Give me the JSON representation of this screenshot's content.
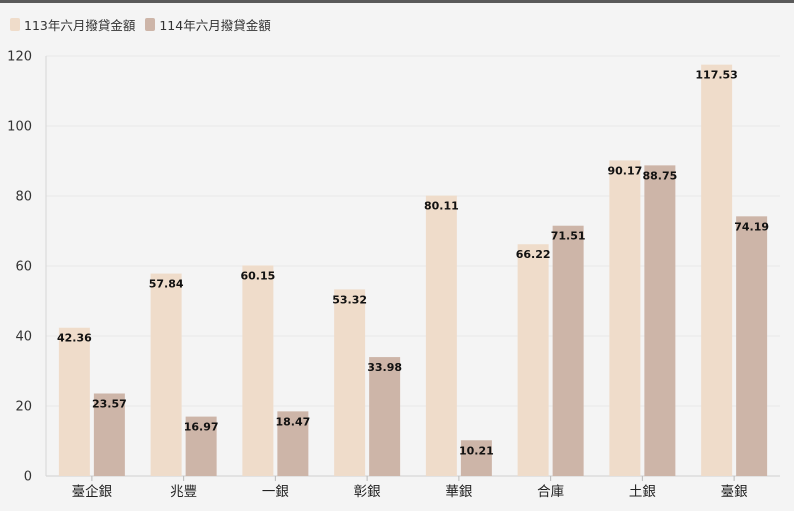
{
  "chart_data": {
    "type": "bar",
    "categories": [
      "臺企銀",
      "兆豐",
      "一銀",
      "彰銀",
      "華銀",
      "合庫",
      "土銀",
      "臺銀"
    ],
    "series": [
      {
        "name": "113年六月撥貸金額",
        "color": "#efdcca",
        "values": [
          42.36,
          57.84,
          60.15,
          53.32,
          80.11,
          66.22,
          90.17,
          117.53
        ]
      },
      {
        "name": "114年六月撥貸金額",
        "color": "#cdb5a8",
        "values": [
          23.57,
          16.97,
          18.47,
          33.98,
          10.21,
          71.51,
          88.75,
          74.19
        ]
      }
    ],
    "ylim": [
      0,
      120
    ],
    "yticks": [
      0,
      20,
      40,
      60,
      80,
      100,
      120
    ],
    "grid": true,
    "legend": "top-left"
  }
}
